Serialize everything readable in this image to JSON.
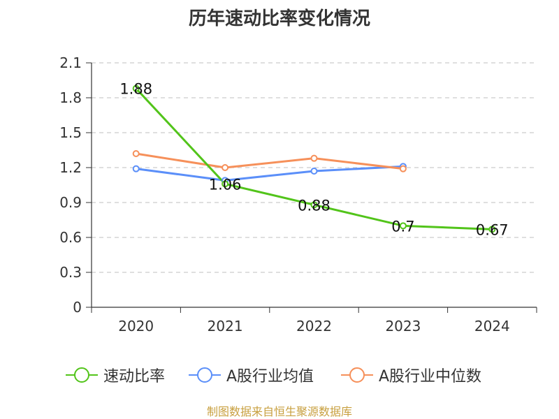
{
  "colors": {
    "series_1": "#52c41a",
    "series_2": "#5b8ff9",
    "series_3": "#f6905a",
    "source": "#c8a040"
  },
  "source_text": "制图数据来自恒生聚源数据库",
  "chart_data": {
    "type": "line",
    "title": "历年速动比率变化情况",
    "xlabel": "",
    "ylabel": "",
    "categories": [
      "2020",
      "2021",
      "2022",
      "2023",
      "2024"
    ],
    "ylim": [
      0,
      2.1
    ],
    "yticks": [
      "0",
      "0.3",
      "0.6",
      "0.9",
      "1.2",
      "1.5",
      "1.8",
      "2.1"
    ],
    "grid": true,
    "legend_position": "bottom",
    "series": [
      {
        "name": "速动比率",
        "values": [
          1.88,
          1.06,
          0.88,
          0.7,
          0.67
        ],
        "labels": [
          "1.88",
          "1.06",
          "0.88",
          "0.7",
          "0.67"
        ]
      },
      {
        "name": "A股行业均值",
        "values": [
          1.19,
          1.09,
          1.17,
          1.21,
          null
        ]
      },
      {
        "name": "A股行业中位数",
        "values": [
          1.32,
          1.2,
          1.28,
          1.19,
          null
        ]
      }
    ]
  }
}
